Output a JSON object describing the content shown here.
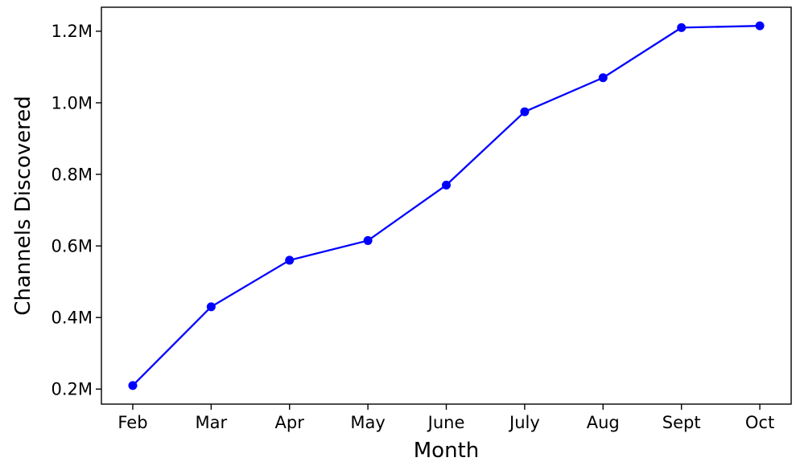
{
  "figure": {
    "background": "#ffffff",
    "axis_color": "#000000",
    "text_color": "#000000"
  },
  "chart_data": {
    "type": "line",
    "title": "",
    "xlabel": "Month",
    "ylabel": "Channels Discovered",
    "categories": [
      "Feb",
      "Mar",
      "Apr",
      "May",
      "June",
      "July",
      "Aug",
      "Sept",
      "Oct"
    ],
    "values": [
      210000,
      430000,
      560000,
      615000,
      770000,
      975000,
      1070000,
      1210000,
      1215000
    ],
    "series": [
      {
        "name": "Channels Discovered",
        "values": [
          210000,
          430000,
          560000,
          615000,
          770000,
          975000,
          1070000,
          1210000,
          1215000
        ]
      }
    ],
    "ylim": [
      158000,
      1267000
    ],
    "ytick_values": [
      200000,
      400000,
      600000,
      800000,
      1000000,
      1200000
    ],
    "ytick_labels": [
      "0.2M",
      "0.4M",
      "0.6M",
      "0.8M",
      "1.0M",
      "1.2M"
    ],
    "x_margin_fraction": 0.4,
    "grid": false,
    "legend": "none",
    "line_color": "#0000ff",
    "marker": "circle",
    "marker_color": "#0000ff"
  }
}
